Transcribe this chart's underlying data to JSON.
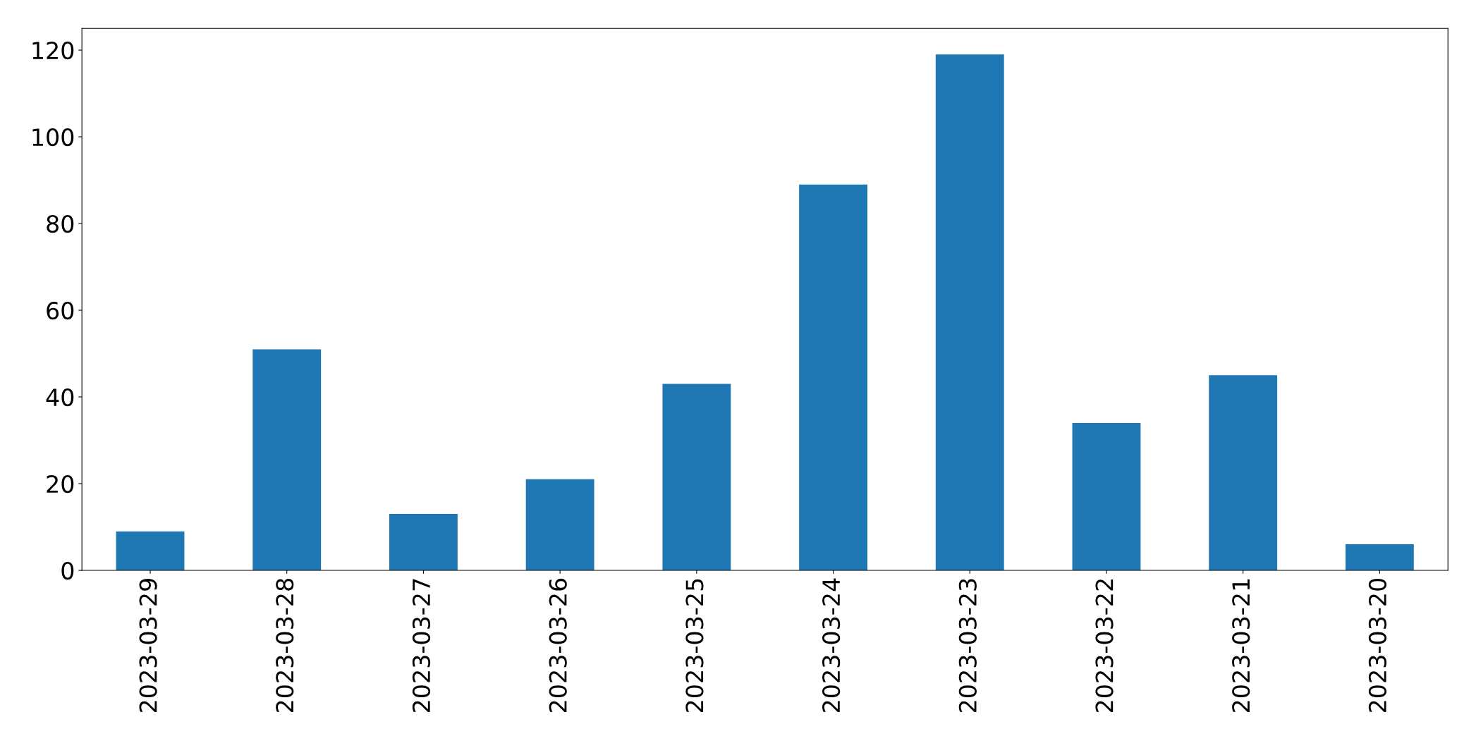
{
  "chart_data": {
    "type": "bar",
    "categories": [
      "2023-03-29",
      "2023-03-28",
      "2023-03-27",
      "2023-03-26",
      "2023-03-25",
      "2023-03-24",
      "2023-03-23",
      "2023-03-22",
      "2023-03-21",
      "2023-03-20"
    ],
    "values": [
      9,
      51,
      13,
      21,
      43,
      89,
      119,
      34,
      45,
      6
    ],
    "color": "#1f77b4",
    "ylim": [
      0,
      125
    ],
    "yticks": [
      0,
      20,
      40,
      60,
      80,
      100,
      120
    ],
    "grid": false,
    "legend": false
  }
}
